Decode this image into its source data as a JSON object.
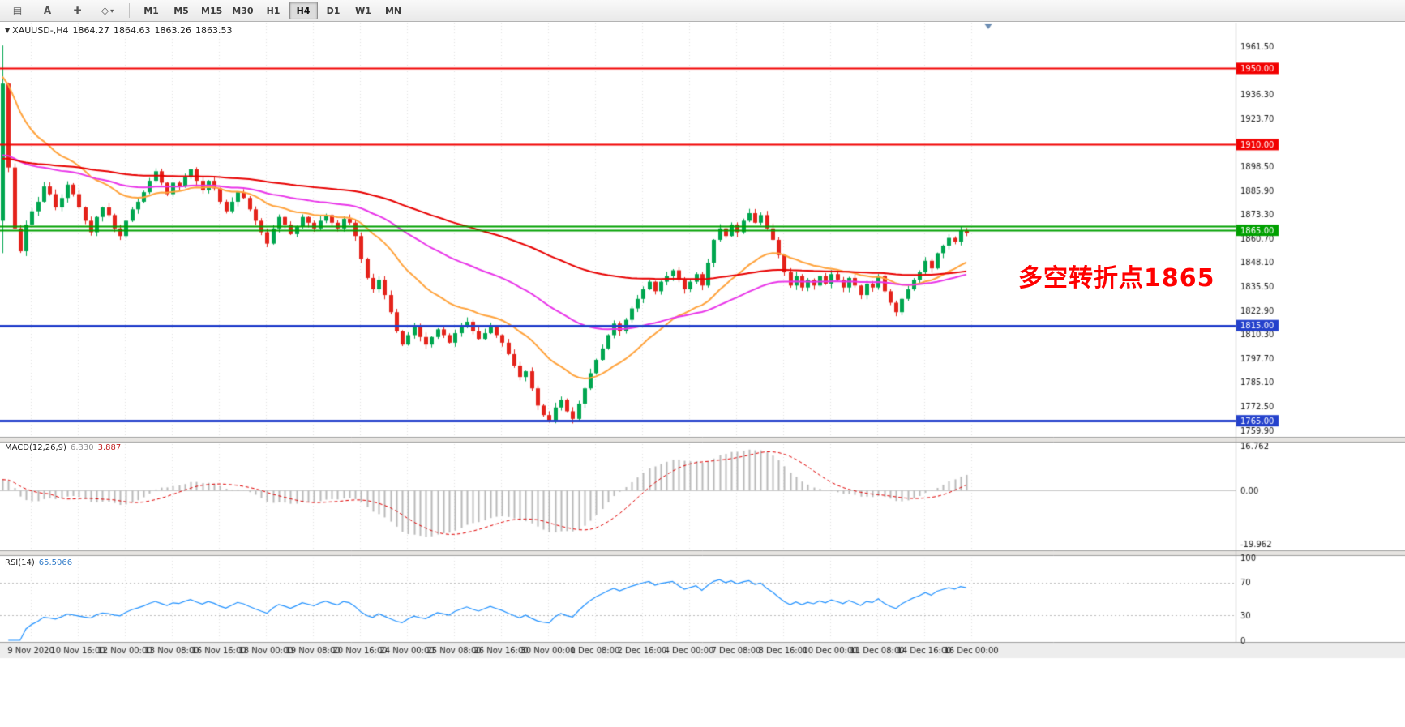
{
  "toolbar": {
    "tools": [
      {
        "name": "charts-grid-icon",
        "glyph": "▤"
      },
      {
        "name": "text-tool",
        "glyph": "A"
      },
      {
        "name": "crosshair-tool",
        "glyph": "✚"
      },
      {
        "name": "draw-tools-dropdown",
        "glyph": "◇",
        "caret": "▾"
      }
    ],
    "timeframes": [
      {
        "label": "M1"
      },
      {
        "label": "M5"
      },
      {
        "label": "M15"
      },
      {
        "label": "M30"
      },
      {
        "label": "H1"
      },
      {
        "label": "H4",
        "active": true
      },
      {
        "label": "D1"
      },
      {
        "label": "W1"
      },
      {
        "label": "MN"
      }
    ]
  },
  "chart": {
    "dropdown_icon": "▼",
    "symbol_period": "XAUUSD-,H4",
    "open": "1864.27",
    "high": "1864.63",
    "low": "1863.26",
    "close": "1863.53",
    "annotation": "多空转折点1865",
    "macd_title": "MACD(12,26,9)",
    "macd_main": "6.330",
    "macd_signal": "3.887",
    "rsi_title": "RSI(14)",
    "rsi_value": "65.5066"
  },
  "chart_data": {
    "type": "candlestick",
    "symbol": "XAUUSD-",
    "timeframe": "H4",
    "first_open": 1870,
    "closes": [
      1942,
      1898,
      1866,
      1854,
      1868,
      1875,
      1880,
      1888,
      1884,
      1877,
      1882,
      1889,
      1884,
      1877,
      1870,
      1864,
      1872,
      1877,
      1873,
      1866,
      1862,
      1870,
      1876,
      1880,
      1885,
      1891,
      1896,
      1890,
      1884,
      1890,
      1888,
      1893,
      1897,
      1891,
      1886,
      1891,
      1887,
      1880,
      1875,
      1880,
      1885,
      1882,
      1876,
      1870,
      1864,
      1858,
      1866,
      1872,
      1868,
      1863,
      1867,
      1872,
      1869,
      1866,
      1870,
      1873,
      1869,
      1866,
      1871,
      1869,
      1862,
      1850,
      1840,
      1834,
      1839,
      1831,
      1822,
      1812,
      1805,
      1810,
      1814,
      1809,
      1805,
      1809,
      1813,
      1810,
      1806,
      1811,
      1814,
      1817,
      1812,
      1808,
      1811,
      1814,
      1810,
      1806,
      1800,
      1794,
      1788,
      1791,
      1782,
      1773,
      1768,
      1765,
      1772,
      1776,
      1770,
      1766,
      1774,
      1782,
      1790,
      1797,
      1803,
      1810,
      1816,
      1812,
      1818,
      1824,
      1829,
      1834,
      1838,
      1833,
      1838,
      1841,
      1844,
      1839,
      1834,
      1838,
      1842,
      1836,
      1848,
      1860,
      1866,
      1862,
      1868,
      1864,
      1870,
      1874,
      1869,
      1873,
      1866,
      1860,
      1852,
      1843,
      1836,
      1841,
      1835,
      1839,
      1836,
      1841,
      1837,
      1842,
      1839,
      1835,
      1840,
      1836,
      1831,
      1837,
      1835,
      1841,
      1833,
      1827,
      1822,
      1829,
      1834,
      1839,
      1843,
      1849,
      1845,
      1853,
      1857,
      1861,
      1859,
      1865,
      1863.53
    ],
    "colors": {
      "up": "#00A64F",
      "down": "#E4231B",
      "ma_fast": "#FFA33C",
      "ma_mid": "#E935E9",
      "ma_slow": "#E80000",
      "hline_red": "#F20000",
      "hline_green": "#00A000",
      "hline_blue": "#2441CC",
      "macd_hist": "#B9B9B9",
      "macd_signal": "#E00000",
      "rsi_line": "#1E90FF",
      "annotation": "#FF0000"
    },
    "moving_averages": [
      {
        "name": "ma-fast-orange",
        "type": "ema",
        "period": 21,
        "seed": 1946,
        "color": "#FFA33C",
        "width": 2
      },
      {
        "name": "ma-mid-magenta",
        "type": "ema",
        "period": 55,
        "seed": 1903,
        "color": "#E935E9",
        "width": 2
      },
      {
        "name": "ma-slow-red",
        "type": "ema",
        "period": 120,
        "seed": 1902,
        "color": "#E80000",
        "width": 2
      }
    ],
    "hlines": [
      {
        "price": 1950.0,
        "label": "1950.00",
        "color": "#F20000",
        "width": 2
      },
      {
        "price": 1910.0,
        "label": "1910.00",
        "color": "#F20000",
        "width": 2
      },
      {
        "price": 1867.0,
        "label": "",
        "color": "#00A000",
        "width": 2
      },
      {
        "price": 1865.0,
        "label": "1865.00",
        "color": "#00A000",
        "width": 2
      },
      {
        "price": 1815.0,
        "label": "1815.00",
        "color": "#2441CC",
        "width": 3
      },
      {
        "price": 1765.0,
        "label": "1765.00",
        "color": "#2441CC",
        "width": 3
      }
    ],
    "macd": {
      "fast": 12,
      "slow": 26,
      "signal": 9,
      "seed": 1890,
      "axis_ticks": [
        {
          "value": 16.762,
          "label": "16.762"
        },
        {
          "value": 0,
          "label": "0.00"
        },
        {
          "value": -19.962,
          "label": "-19.962"
        }
      ],
      "range": [
        -22,
        18
      ]
    },
    "rsi": {
      "period": 14,
      "levels": [
        70,
        30
      ],
      "axis_ticks": [
        {
          "value": 100,
          "label": "100"
        },
        {
          "value": 70,
          "label": "70"
        },
        {
          "value": 30,
          "label": "30"
        },
        {
          "value": 0,
          "label": "0"
        }
      ],
      "range": [
        0,
        100
      ]
    },
    "price_axis": {
      "min": 1757,
      "max": 1974,
      "visible_ticks": [
        1961.5,
        1936.3,
        1923.7,
        1898.5,
        1885.9,
        1873.3,
        1860.7,
        1848.1,
        1835.5,
        1822.9,
        1810.3,
        1797.7,
        1785.1,
        1772.5,
        1759.9
      ]
    },
    "time_axis": {
      "labels": [
        "9 Nov 2020",
        "10 Nov 16:00",
        "12 Nov 00:00",
        "13 Nov 08:00",
        "16 Nov 16:00",
        "18 Nov 00:00",
        "19 Nov 08:00",
        "20 Nov 16:00",
        "24 Nov 00:00",
        "25 Nov 08:00",
        "26 Nov 16:00",
        "30 Nov 00:00",
        "1 Dec 08:00",
        "2 Dec 16:00",
        "4 Dec 00:00",
        "7 Dec 08:00",
        "8 Dec 16:00",
        "10 Dec 00:00",
        "11 Dec 08:00",
        "14 Dec 16:00",
        "16 Dec 00:00"
      ]
    }
  }
}
